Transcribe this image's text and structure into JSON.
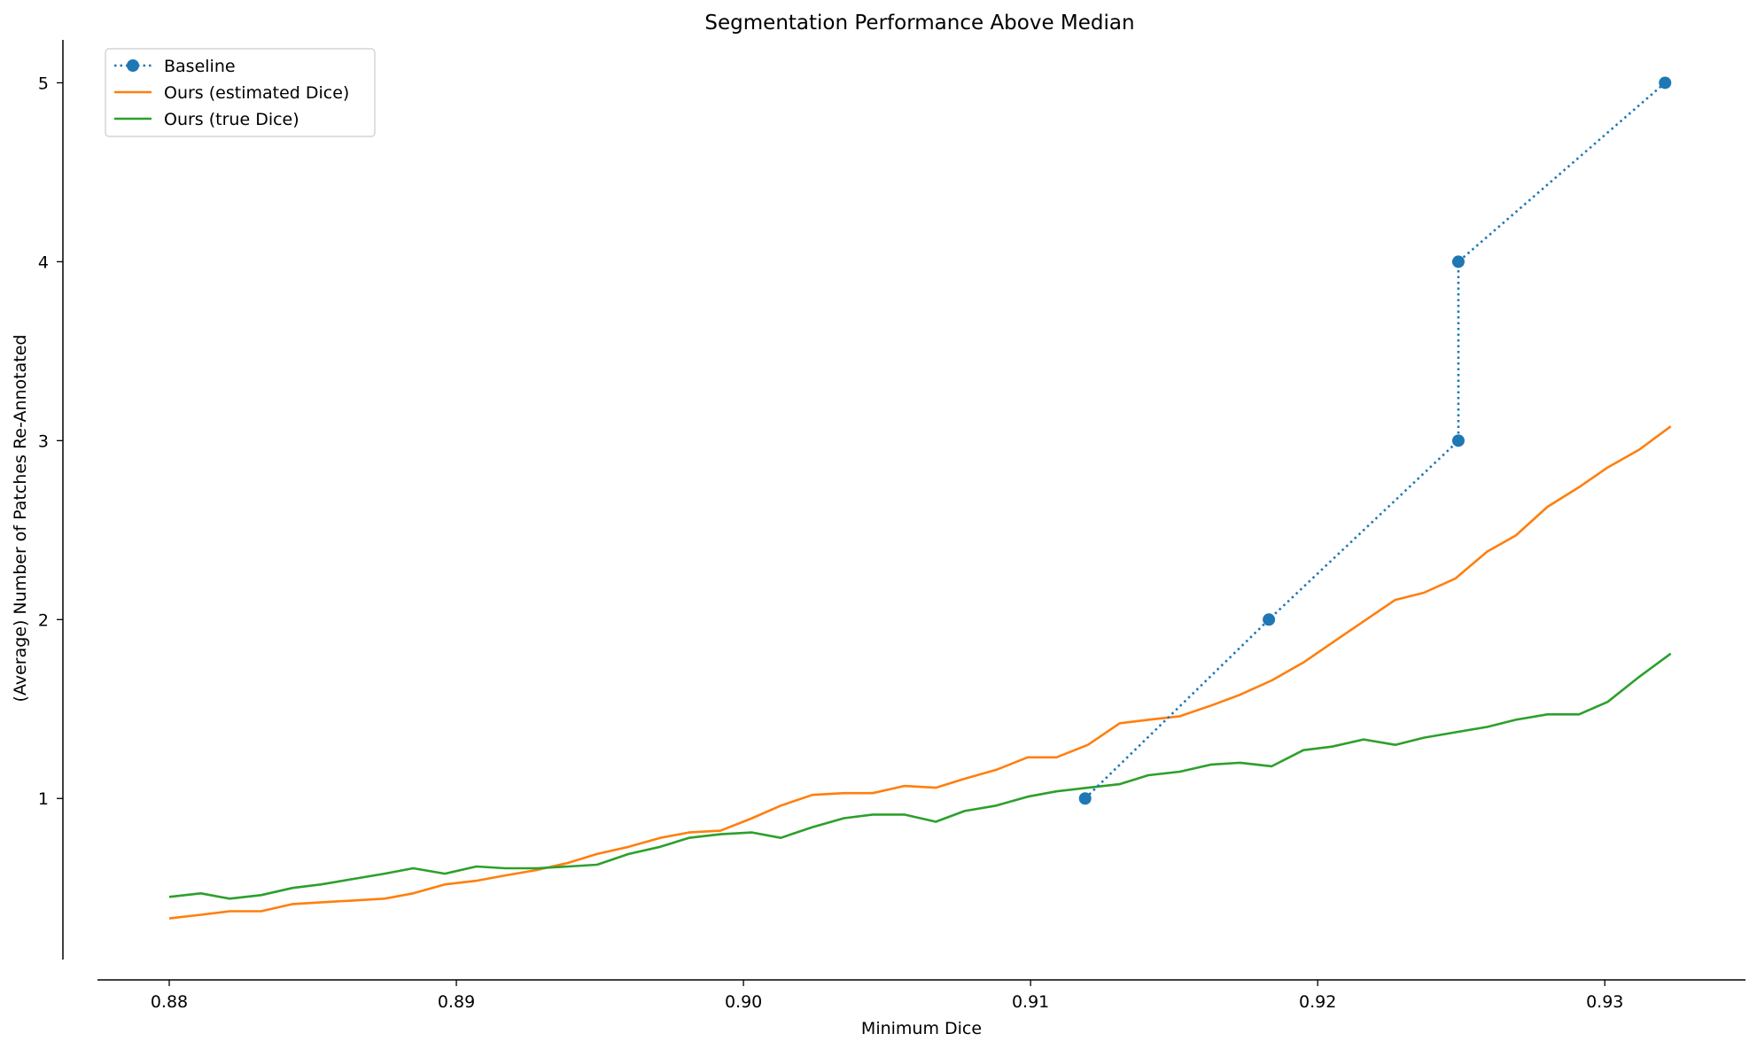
{
  "chart_data": {
    "type": "line",
    "title": "Segmentation Performance Above Median",
    "xlabel": "Minimum Dice",
    "ylabel": "(Average) Number of Patches Re-Annotated",
    "xlim": [
      0.8775,
      0.9349
    ],
    "ylim": [
      0.1,
      5.24
    ],
    "xticks": [
      0.88,
      0.89,
      0.9,
      0.91,
      0.92,
      0.93
    ],
    "xtick_labels": [
      "0.88",
      "0.89",
      "0.90",
      "0.91",
      "0.92",
      "0.93"
    ],
    "yticks": [
      1,
      2,
      3,
      4,
      5
    ],
    "ytick_labels": [
      "1",
      "2",
      "3",
      "4",
      "5"
    ],
    "grid": false,
    "legend_position": "top-left",
    "series": [
      {
        "name": "Baseline",
        "color": "#1f77b4",
        "style": "dotted",
        "marker": "circle",
        "x": [
          0.9119,
          0.9183,
          0.9249,
          0.9249,
          0.9321
        ],
        "y": [
          1,
          2,
          3,
          4,
          5
        ]
      },
      {
        "name": "Ours (estimated Dice)",
        "color": "#ff7f0e",
        "style": "solid",
        "marker": "none",
        "x": [
          0.88,
          0.8811,
          0.8821,
          0.8832,
          0.8843,
          0.8853,
          0.8864,
          0.8875,
          0.8885,
          0.8896,
          0.8907,
          0.8917,
          0.8928,
          0.8939,
          0.8949,
          0.896,
          0.8971,
          0.8981,
          0.8992,
          0.9003,
          0.9013,
          0.9024,
          0.9035,
          0.9045,
          0.9056,
          0.9067,
          0.9077,
          0.9088,
          0.9099,
          0.9109,
          0.912,
          0.9131,
          0.9141,
          0.9152,
          0.9163,
          0.9173,
          0.9184,
          0.9195,
          0.9205,
          0.9216,
          0.9227,
          0.9237,
          0.9248,
          0.9259,
          0.9269,
          0.928,
          0.9291,
          0.9301,
          0.9312,
          0.9323
        ],
        "y": [
          0.33,
          0.35,
          0.37,
          0.37,
          0.41,
          0.42,
          0.43,
          0.44,
          0.47,
          0.52,
          0.54,
          0.57,
          0.6,
          0.64,
          0.69,
          0.73,
          0.78,
          0.81,
          0.82,
          0.89,
          0.96,
          1.02,
          1.03,
          1.03,
          1.07,
          1.06,
          1.11,
          1.16,
          1.23,
          1.23,
          1.3,
          1.42,
          1.44,
          1.46,
          1.52,
          1.58,
          1.66,
          1.76,
          1.87,
          1.99,
          2.11,
          2.15,
          2.23,
          2.38,
          2.47,
          2.63,
          2.74,
          2.85,
          2.95,
          3.08
        ]
      },
      {
        "name": "Ours (true Dice)",
        "color": "#2ca02c",
        "style": "solid",
        "marker": "none",
        "x": [
          0.88,
          0.8811,
          0.8821,
          0.8832,
          0.8843,
          0.8853,
          0.8864,
          0.8875,
          0.8885,
          0.8896,
          0.8907,
          0.8917,
          0.8928,
          0.8939,
          0.8949,
          0.896,
          0.8971,
          0.8981,
          0.8992,
          0.9003,
          0.9013,
          0.9024,
          0.9035,
          0.9045,
          0.9056,
          0.9067,
          0.9077,
          0.9088,
          0.9099,
          0.9109,
          0.912,
          0.9131,
          0.9141,
          0.9152,
          0.9163,
          0.9173,
          0.9184,
          0.9195,
          0.9205,
          0.9216,
          0.9227,
          0.9237,
          0.9248,
          0.9259,
          0.9269,
          0.928,
          0.9291,
          0.9301,
          0.9312,
          0.9323
        ],
        "y": [
          0.45,
          0.47,
          0.44,
          0.46,
          0.5,
          0.52,
          0.55,
          0.58,
          0.61,
          0.58,
          0.62,
          0.61,
          0.61,
          0.62,
          0.63,
          0.69,
          0.73,
          0.78,
          0.8,
          0.81,
          0.78,
          0.84,
          0.89,
          0.91,
          0.91,
          0.87,
          0.93,
          0.96,
          1.01,
          1.04,
          1.06,
          1.08,
          1.13,
          1.15,
          1.19,
          1.2,
          1.18,
          1.27,
          1.29,
          1.33,
          1.3,
          1.34,
          1.37,
          1.4,
          1.44,
          1.47,
          1.47,
          1.54,
          1.68,
          1.81
        ]
      }
    ]
  }
}
